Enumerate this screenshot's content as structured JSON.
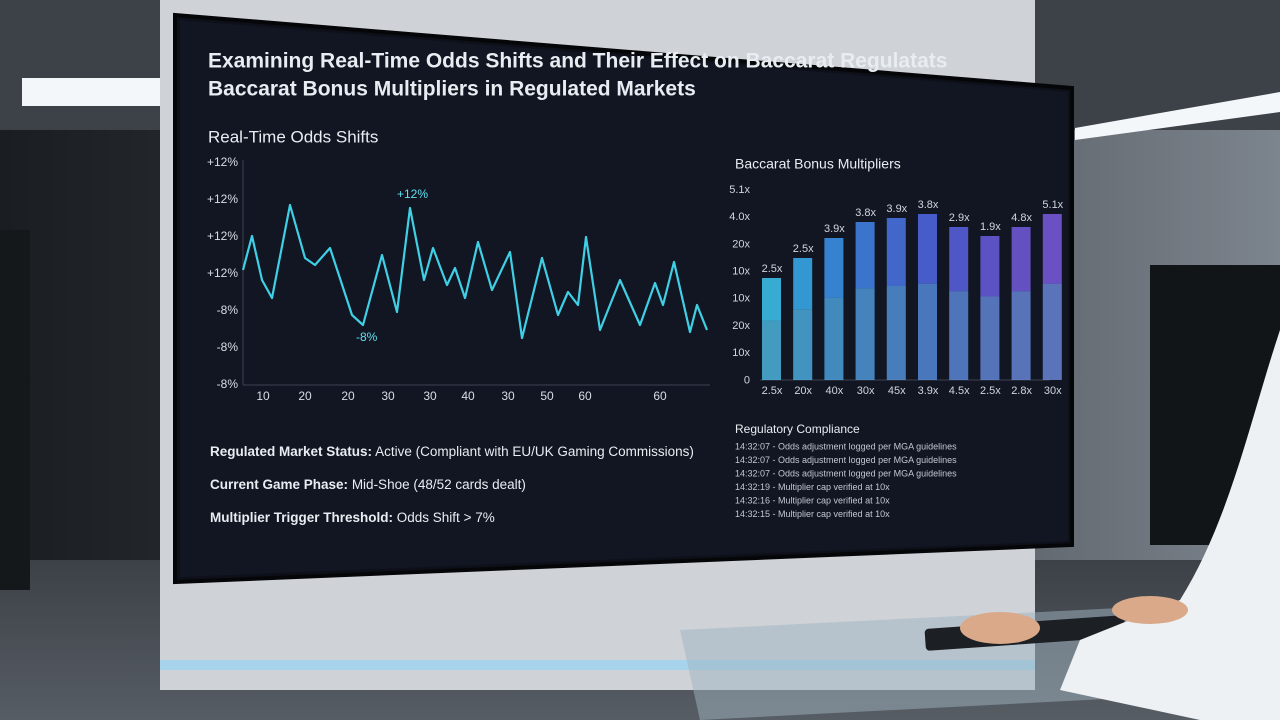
{
  "screen": {
    "title_lines": [
      "Examining Real-Time Odds Shifts and Their Effect on Baccarat Regulatats",
      "Baccarat Bonus Multipliers in Regulated Markets"
    ],
    "odds_panel": {
      "title": "Real-Time Odds Shifts",
      "y_labels": [
        "+12%",
        "+12%",
        "+12%",
        "+12%",
        "-8%",
        "-8%",
        "-8%"
      ],
      "x_labels": [
        "10",
        "20",
        "20",
        "30",
        "30",
        "40",
        "30",
        "50",
        "60",
        "60"
      ],
      "annotations": [
        "+12%",
        "-8%"
      ]
    },
    "multiplier_panel": {
      "title": "Baccarat Bonus Multipliers",
      "y_labels": [
        "5.1x",
        "4.0x",
        "20x",
        "10x",
        "10x",
        "20x",
        "10x",
        "0"
      ],
      "bar_labels": [
        "2.5x",
        "2.5x",
        "3.9x",
        "3.8x",
        "3.9x",
        "3.8x",
        "2.9x",
        "1.9x",
        "4.8x",
        "5.1x"
      ],
      "x_labels": [
        "2.5x",
        "20x",
        "40x",
        "30x",
        "45x",
        "3.9x",
        "4.5x",
        "2.5x",
        "2.8x",
        "30x"
      ]
    },
    "status": [
      {
        "label": "Regulated Market Status:",
        "value": "Active (Compliant with EU/UK Gaming Commissions)"
      },
      {
        "label": "Current Game Phase:",
        "value": "Mid-Shoe (48/52 cards dealt)"
      },
      {
        "label": "Multiplier Trigger Threshold:",
        "value": "Odds Shift > 7%"
      }
    ],
    "compliance": {
      "title": "Regulatory Compliance",
      "log": [
        "14:32:07 - Odds adjustment logged per MGA guidelines",
        "14:32:07 - Odds adjustment logged per MGA guidelines",
        "14:32:07 - Odds adjustment logged per MGA guidelines",
        "14:32:19 - Multiplier cap verified at 10x",
        "14:32:16 - Multiplier cap verified at 10x",
        "14:32:15 - Multiplier cap verified at 10x"
      ]
    }
  }
}
